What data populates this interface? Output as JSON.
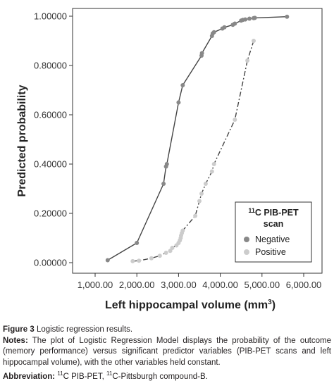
{
  "chart_data": {
    "type": "scatter",
    "title": "",
    "xlabel": "Left hippocampal volume (mm3)",
    "ylabel": "Predicted probability",
    "xlim": [
      1000,
      6000
    ],
    "ylim": [
      0,
      1
    ],
    "x_ticks": [
      "1,000.00",
      "2,000.00",
      "3,000.00",
      "4,000.00",
      "5,000.00",
      "6,000.00"
    ],
    "y_ticks": [
      "0.00000",
      "0.20000",
      "0.40000",
      "0.60000",
      "0.80000",
      "1.00000"
    ],
    "grid": false,
    "legend": {
      "position": "bottom-right",
      "title": "11C PIB-PET scan",
      "title_line1": "11C PIB-PET",
      "title_line2": "scan",
      "entries": [
        "Negative",
        "Positive"
      ]
    },
    "series": [
      {
        "name": "Negative",
        "color": "#888888",
        "line": "solid",
        "points": [
          [
            1300,
            0.01
          ],
          [
            2000,
            0.08
          ],
          [
            2640,
            0.32
          ],
          [
            2700,
            0.39
          ],
          [
            2720,
            0.4
          ],
          [
            3000,
            0.65
          ],
          [
            3100,
            0.72
          ],
          [
            3550,
            0.84
          ],
          [
            3560,
            0.85
          ],
          [
            3800,
            0.92
          ],
          [
            3820,
            0.93
          ],
          [
            3850,
            0.935
          ],
          [
            4050,
            0.95
          ],
          [
            4100,
            0.955
          ],
          [
            4300,
            0.965
          ],
          [
            4350,
            0.97
          ],
          [
            4500,
            0.982
          ],
          [
            4540,
            0.985
          ],
          [
            4600,
            0.987
          ],
          [
            4700,
            0.99
          ],
          [
            4800,
            0.992
          ],
          [
            4830,
            0.993
          ],
          [
            5600,
            0.998
          ]
        ]
      },
      {
        "name": "Positive",
        "color": "#cccccc",
        "line": "dashdot",
        "points": [
          [
            1900,
            0.006
          ],
          [
            2050,
            0.008
          ],
          [
            2350,
            0.018
          ],
          [
            2550,
            0.028
          ],
          [
            2700,
            0.04
          ],
          [
            2800,
            0.048
          ],
          [
            2850,
            0.06
          ],
          [
            2950,
            0.07
          ],
          [
            3000,
            0.08
          ],
          [
            3030,
            0.09
          ],
          [
            3050,
            0.1
          ],
          [
            3060,
            0.11
          ],
          [
            3080,
            0.12
          ],
          [
            3100,
            0.13
          ],
          [
            3400,
            0.19
          ],
          [
            3500,
            0.25
          ],
          [
            3550,
            0.28
          ],
          [
            3650,
            0.32
          ],
          [
            3800,
            0.37
          ],
          [
            3850,
            0.4
          ],
          [
            4350,
            0.58
          ],
          [
            4650,
            0.82
          ],
          [
            4800,
            0.9
          ]
        ]
      }
    ]
  },
  "caption": {
    "figure_label": "Figure 3",
    "figure_text": "Logistic regression results.",
    "notes_label": "Notes:",
    "notes_text": "The plot of Logistic Regression Model displays the probability of the outcome (memory performance) versus significant predictor variables (PIB-PET scans and left hippocampal volume), with the other variables held constant.",
    "abbrev_label": "Abbreviation:",
    "abbrev_text": "11C PIB-PET, 11C-Pittsburgh compound-B."
  }
}
